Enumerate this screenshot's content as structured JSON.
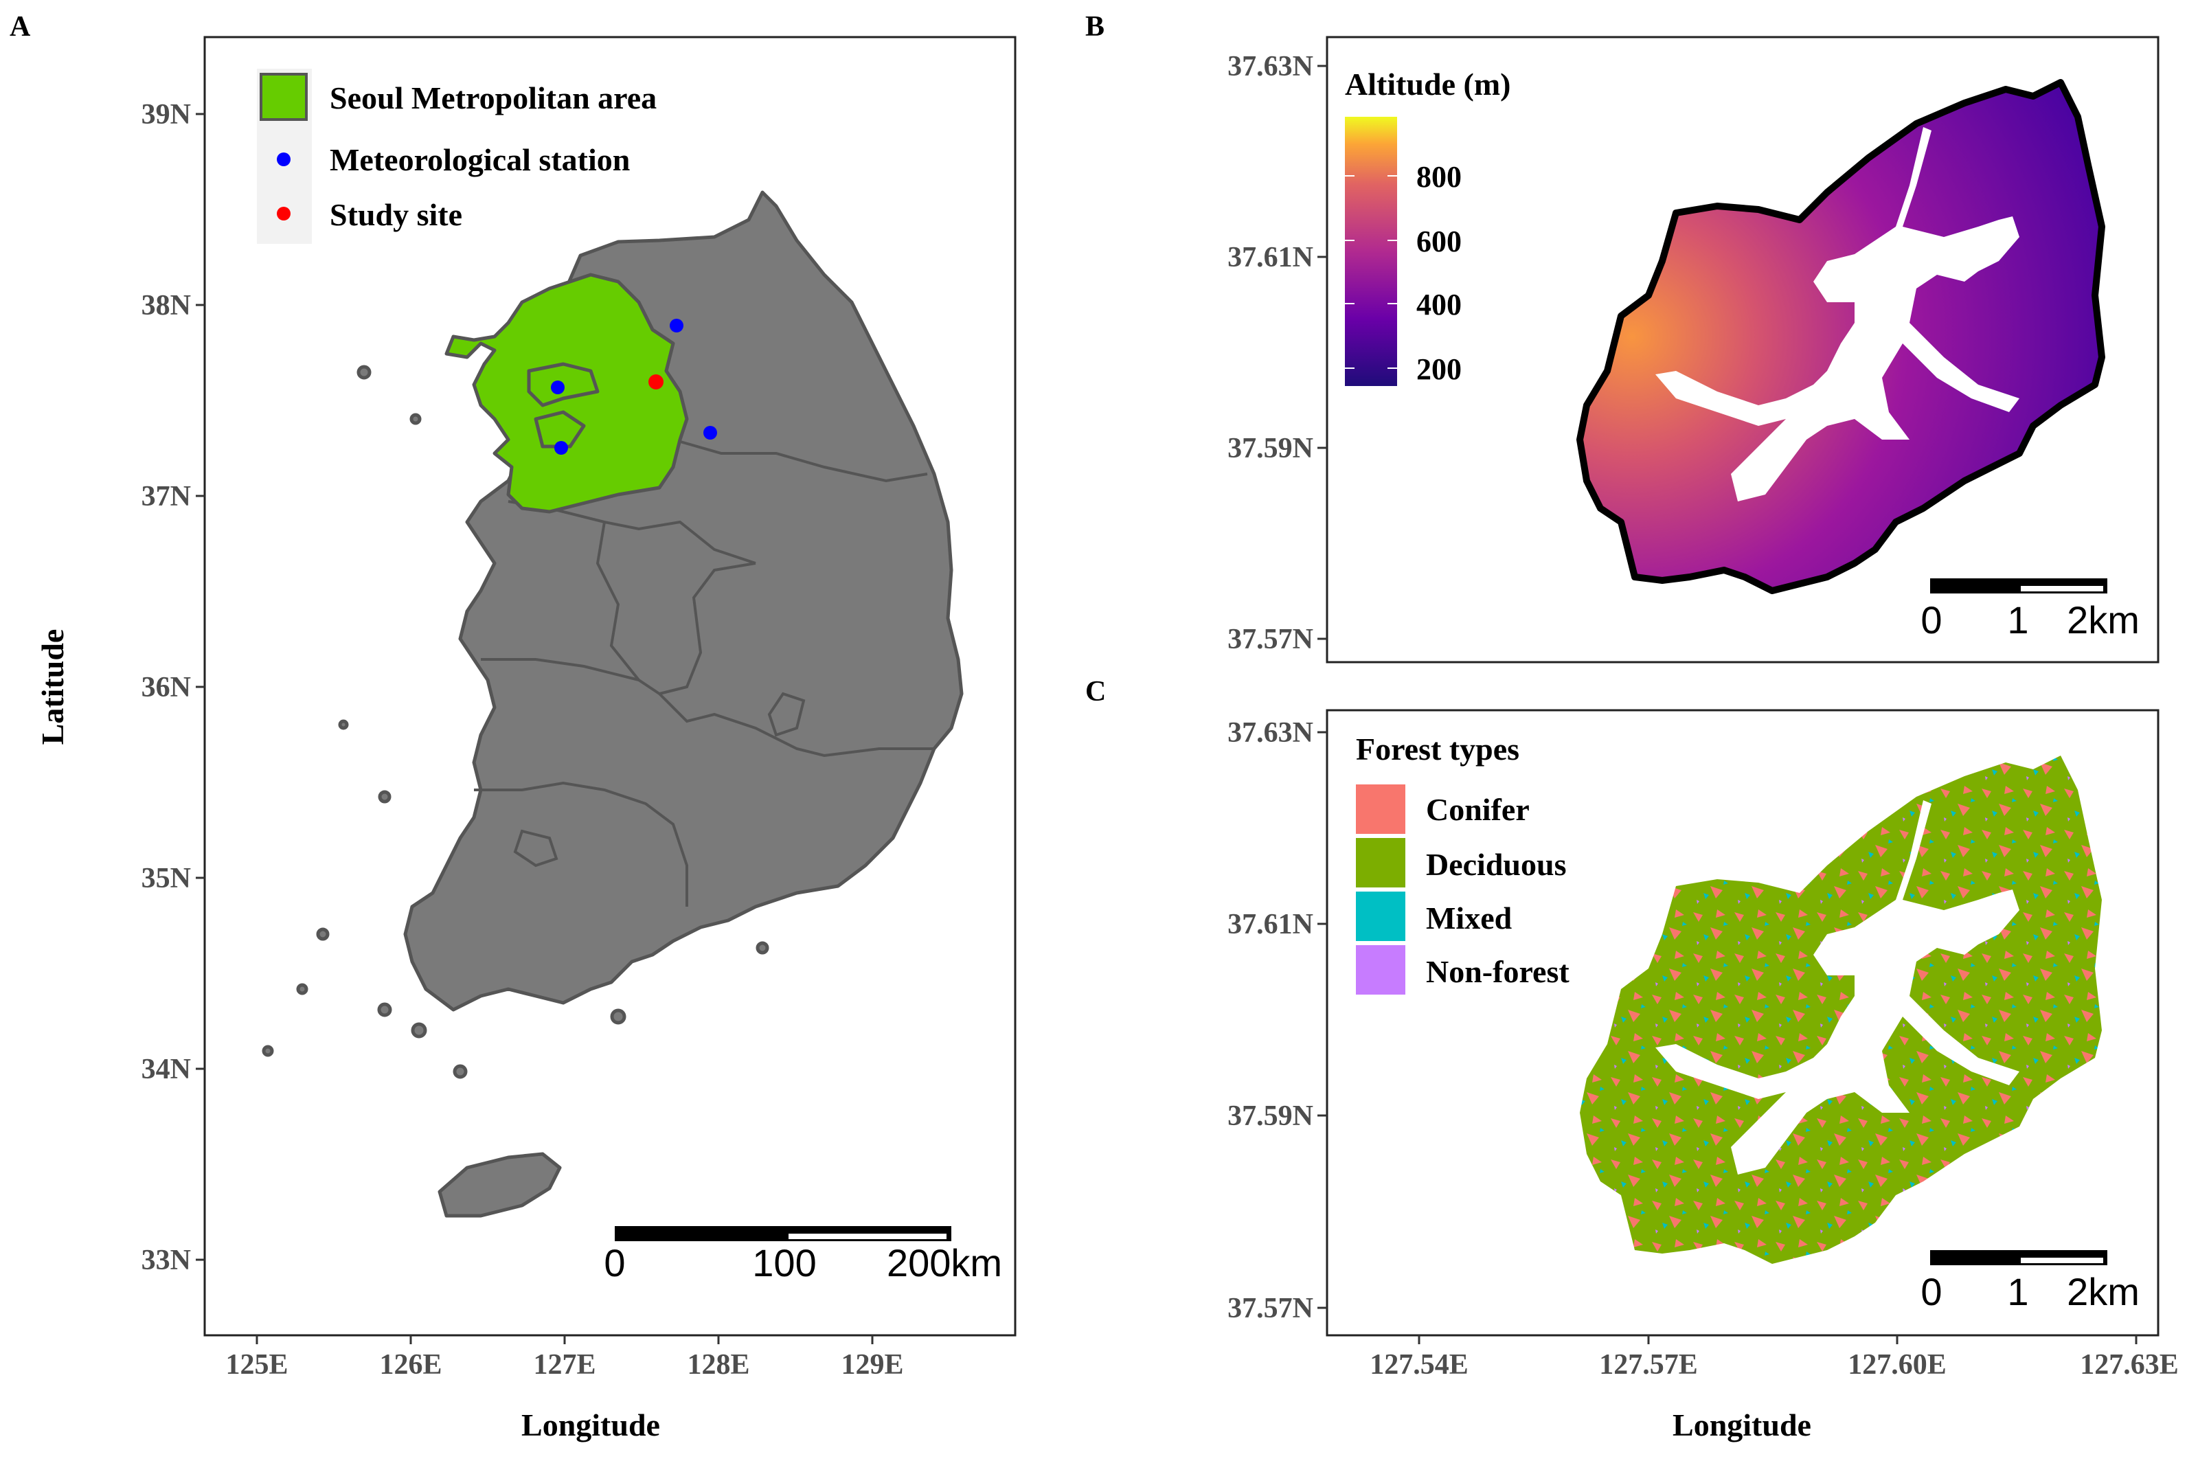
{
  "figure": {
    "panel_a": {
      "letter": "A",
      "y_axis_title": "Latitude",
      "x_axis_title": "Longitude",
      "y_ticks": [
        "39N",
        "38N",
        "37N",
        "36N",
        "35N",
        "34N",
        "33N"
      ],
      "x_ticks": [
        "125E",
        "126E",
        "127E",
        "128E",
        "129E"
      ],
      "legend": {
        "items": [
          {
            "label": "Seoul Metropolitan area",
            "color": "#66cc00",
            "kind": "fill"
          },
          {
            "label": "Meteorological station",
            "color": "#0000ff",
            "kind": "point"
          },
          {
            "label": "Study site",
            "color": "#ff0000",
            "kind": "point"
          }
        ]
      },
      "scale_bar": {
        "labels": [
          "0",
          "100",
          "200km"
        ]
      },
      "land_color": "#7a7a7a",
      "region_color": "#66cc00"
    },
    "panel_b": {
      "letter": "B",
      "y_ticks": [
        "37.63N",
        "37.61N",
        "37.59N",
        "37.57N"
      ],
      "legend_title": "Altitude (m)",
      "colorbar_labels": [
        "800",
        "600",
        "400",
        "200"
      ],
      "scale_bar": {
        "labels": [
          "0",
          "1",
          "2km"
        ]
      }
    },
    "panel_c": {
      "letter": "C",
      "y_ticks": [
        "37.63N",
        "37.61N",
        "37.59N",
        "37.57N"
      ],
      "x_ticks": [
        "127.54E",
        "127.57E",
        "127.60E",
        "127.63E"
      ],
      "x_axis_title": "Longitude",
      "legend": {
        "title": "Forest types",
        "items": [
          {
            "label": "Conifer",
            "color": "#f8766d"
          },
          {
            "label": "Deciduous",
            "color": "#7cae00"
          },
          {
            "label": "Mixed",
            "color": "#00bfc4"
          },
          {
            "label": "Non-forest",
            "color": "#c77cff"
          }
        ]
      },
      "scale_bar": {
        "labels": [
          "0",
          "1",
          "2km"
        ]
      }
    }
  }
}
